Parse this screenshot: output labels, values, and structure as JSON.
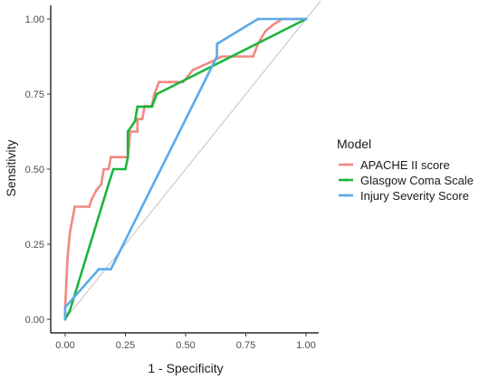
{
  "chart_data": {
    "type": "line",
    "xlabel": "1 - Specificity",
    "ylabel": "Sensitivity",
    "xlim": [
      0,
      1
    ],
    "ylim": [
      0,
      1
    ],
    "x_ticks": [
      "0.00",
      "0.25",
      "0.50",
      "0.75",
      "1.00"
    ],
    "y_ticks": [
      "0.00",
      "0.25",
      "0.50",
      "0.75",
      "1.00"
    ],
    "grid": false,
    "reference_line": {
      "from": [
        0,
        0
      ],
      "to": [
        1,
        1
      ],
      "color": "#bdbdbd"
    },
    "legend": {
      "title": "Model",
      "placement": "right"
    },
    "series": [
      {
        "name": "APACHE II score",
        "color": "#f08a80",
        "points": [
          [
            0.0,
            0.0
          ],
          [
            0.0,
            0.04
          ],
          [
            0.005,
            0.125
          ],
          [
            0.01,
            0.21
          ],
          [
            0.015,
            0.25
          ],
          [
            0.02,
            0.29
          ],
          [
            0.03,
            0.333
          ],
          [
            0.04,
            0.375
          ],
          [
            0.07,
            0.375
          ],
          [
            0.1,
            0.375
          ],
          [
            0.11,
            0.4
          ],
          [
            0.13,
            0.43
          ],
          [
            0.15,
            0.45
          ],
          [
            0.16,
            0.5
          ],
          [
            0.18,
            0.5
          ],
          [
            0.19,
            0.54
          ],
          [
            0.22,
            0.54
          ],
          [
            0.26,
            0.54
          ],
          [
            0.265,
            0.58
          ],
          [
            0.27,
            0.625
          ],
          [
            0.3,
            0.625
          ],
          [
            0.3,
            0.667
          ],
          [
            0.32,
            0.667
          ],
          [
            0.33,
            0.71
          ],
          [
            0.36,
            0.71
          ],
          [
            0.37,
            0.75
          ],
          [
            0.39,
            0.79
          ],
          [
            0.43,
            0.79
          ],
          [
            0.46,
            0.79
          ],
          [
            0.49,
            0.79
          ],
          [
            0.53,
            0.83
          ],
          [
            0.6,
            0.855
          ],
          [
            0.65,
            0.875
          ],
          [
            0.72,
            0.875
          ],
          [
            0.78,
            0.875
          ],
          [
            0.8,
            0.917
          ],
          [
            0.83,
            0.958
          ],
          [
            0.86,
            0.979
          ],
          [
            0.9,
            1.0
          ],
          [
            0.95,
            1.0
          ],
          [
            1.0,
            1.0
          ]
        ]
      },
      {
        "name": "Glasgow Coma Scale",
        "color": "#1bb53c",
        "points": [
          [
            0.0,
            0.0
          ],
          [
            0.02,
            0.03
          ],
          [
            0.18,
            0.45
          ],
          [
            0.2,
            0.5
          ],
          [
            0.25,
            0.5
          ],
          [
            0.26,
            0.54
          ],
          [
            0.26,
            0.625
          ],
          [
            0.29,
            0.66
          ],
          [
            0.3,
            0.708
          ],
          [
            0.36,
            0.708
          ],
          [
            0.38,
            0.75
          ],
          [
            1.0,
            1.0
          ]
        ]
      },
      {
        "name": "Injury Severity Score",
        "color": "#5aaaea",
        "points": [
          [
            0.0,
            0.0
          ],
          [
            0.0,
            0.04
          ],
          [
            0.14,
            0.167
          ],
          [
            0.19,
            0.167
          ],
          [
            0.63,
            0.875
          ],
          [
            0.63,
            0.917
          ],
          [
            0.8,
            1.0
          ],
          [
            1.0,
            1.0
          ]
        ]
      }
    ]
  }
}
